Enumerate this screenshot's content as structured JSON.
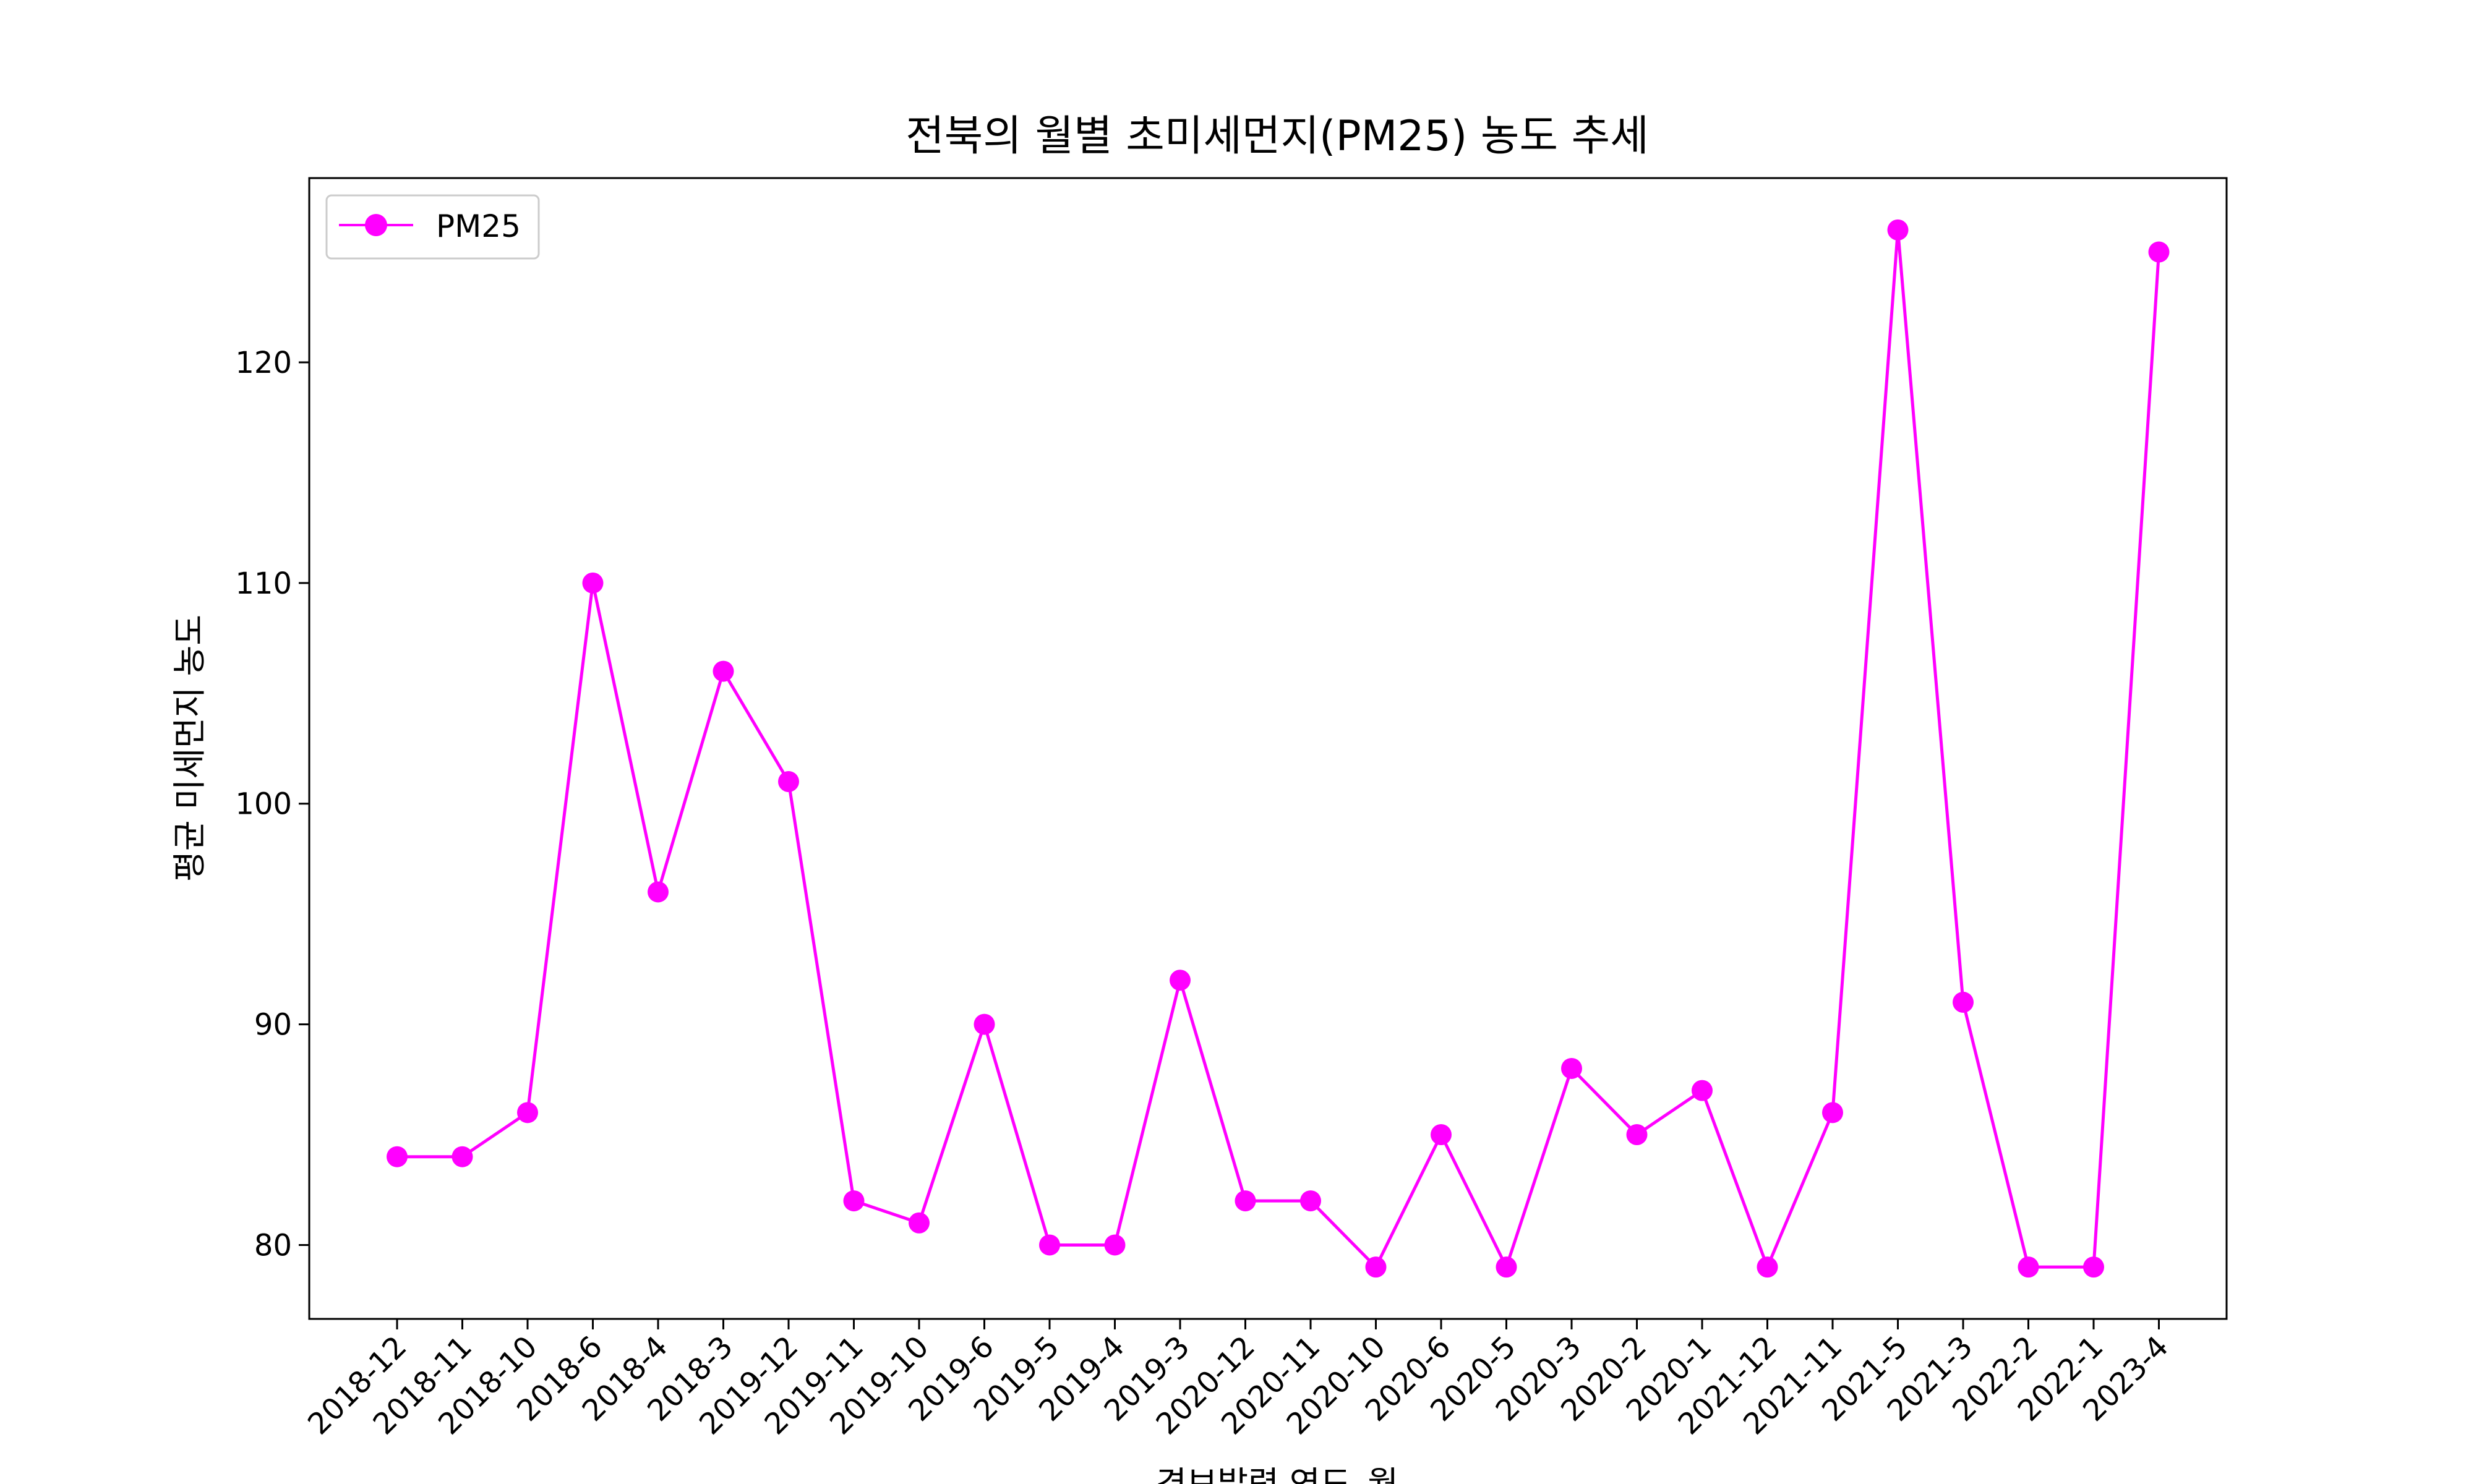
{
  "chart_data": {
    "type": "line",
    "title": "전북의 월별 초미세먼지(PM25) 농도 추세",
    "xlabel": "경보발령 연도_월",
    "ylabel": "평균 미세먼지 농도",
    "categories": [
      "2018-12",
      "2018-11",
      "2018-10",
      "2018-6",
      "2018-4",
      "2018-3",
      "2019-12",
      "2019-11",
      "2019-10",
      "2019-6",
      "2019-5",
      "2019-4",
      "2019-3",
      "2020-12",
      "2020-11",
      "2020-10",
      "2020-6",
      "2020-5",
      "2020-3",
      "2020-2",
      "2020-1",
      "2021-12",
      "2021-11",
      "2021-5",
      "2021-3",
      "2022-2",
      "2022-1",
      "2023-4"
    ],
    "series": [
      {
        "name": "PM25",
        "color": "#ff00ff",
        "marker": "circle",
        "values": [
          84,
          84,
          86,
          110,
          96,
          106,
          101,
          82,
          81,
          90,
          80,
          80,
          92,
          82,
          82,
          79,
          85,
          79,
          88,
          85,
          87,
          79,
          86,
          126,
          91,
          79,
          79,
          125
        ]
      }
    ],
    "ylim": [
      76.65,
      128.35
    ],
    "yticks": [
      80,
      90,
      100,
      110,
      120
    ],
    "grid": false,
    "legend": "upper-left"
  }
}
